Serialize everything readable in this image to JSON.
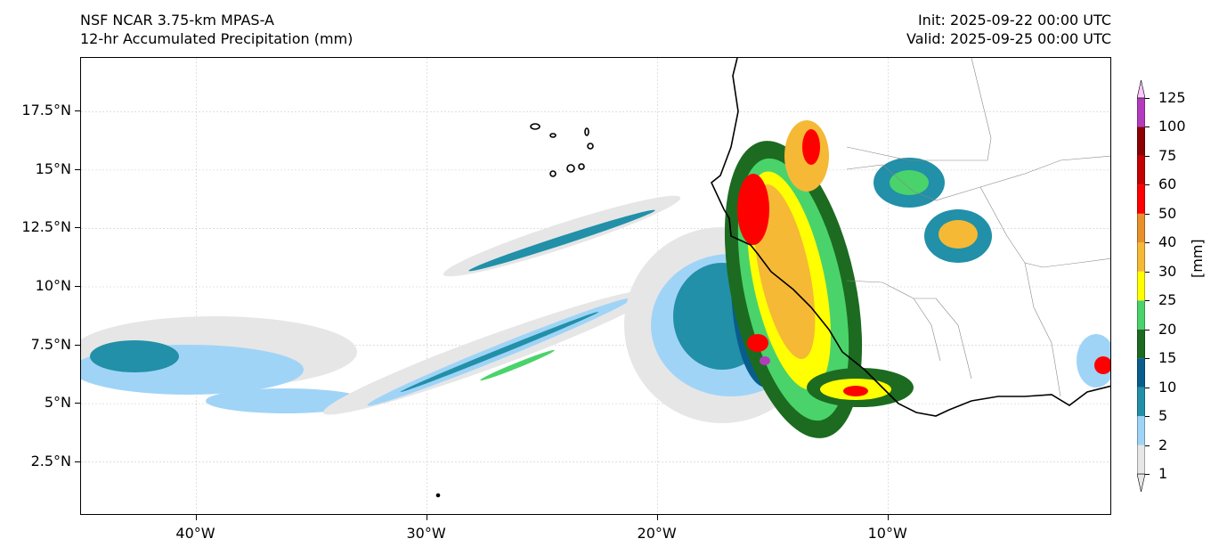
{
  "header": {
    "model": "NSF NCAR 3.75-km MPAS-A",
    "field": "12-hr Accumulated Precipitation (mm)",
    "init": "Init: 2025-09-22 00:00 UTC",
    "valid": "Valid: 2025-09-25 00:00 UTC"
  },
  "map": {
    "lon_range": [
      -45,
      -0.3
    ],
    "lat_range": [
      0.2,
      19.8
    ],
    "lat_ticks": [
      {
        "label": "17.5°N",
        "value": 17.5
      },
      {
        "label": "15°N",
        "value": 15
      },
      {
        "label": "12.5°N",
        "value": 12.5
      },
      {
        "label": "10°N",
        "value": 10
      },
      {
        "label": "7.5°N",
        "value": 7.5
      },
      {
        "label": "5°N",
        "value": 5
      },
      {
        "label": "2.5°N",
        "value": 2.5
      }
    ],
    "lon_ticks": [
      {
        "label": "40°W",
        "value": -40
      },
      {
        "label": "30°W",
        "value": -30
      },
      {
        "label": "20°W",
        "value": -20
      },
      {
        "label": "10°W",
        "value": -10
      }
    ],
    "gridlines": true
  },
  "colorbar": {
    "units": "[mm]",
    "levels": [
      "1",
      "2",
      "5",
      "10",
      "15",
      "20",
      "25",
      "30",
      "40",
      "50",
      "60",
      "75",
      "100",
      "125"
    ],
    "colors": [
      "#e6e6e6",
      "#9fd4f7",
      "#2190a8",
      "#085d8c",
      "#1c6b20",
      "#4ad36a",
      "#ffff00",
      "#f5b935",
      "#e8902b",
      "#ff0000",
      "#c40000",
      "#8b0000",
      "#b43bbd",
      "#fbc8fb"
    ]
  }
}
